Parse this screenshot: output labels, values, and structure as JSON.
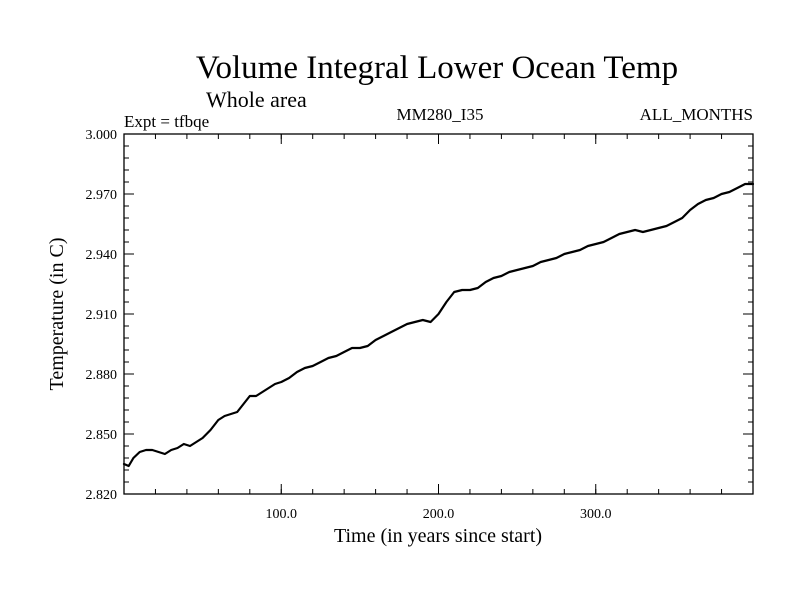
{
  "chart_data": {
    "type": "line",
    "title": "Volume Integral Lower Ocean Temp",
    "subtitle": "Whole area",
    "experiment_label": "Expt = tfbqe",
    "run_label": "MM280_I35",
    "period_label": "ALL_MONTHS",
    "xlabel": "Time (in years since start)",
    "ylabel": "Temperature (in C)",
    "xlim": [
      0,
      400
    ],
    "ylim": [
      2.82,
      3.0
    ],
    "x_ticks": [
      100,
      200,
      300
    ],
    "x_tick_labels": [
      "100.0",
      "200.0",
      "300.0"
    ],
    "y_ticks": [
      2.82,
      2.85,
      2.88,
      2.91,
      2.94,
      2.97,
      3.0
    ],
    "y_tick_labels": [
      "2.820",
      "2.850",
      "2.880",
      "2.910",
      "2.940",
      "2.970",
      "3.000"
    ],
    "grid": false,
    "series": [
      {
        "x": [
          0,
          3,
          6,
          10,
          14,
          18,
          22,
          26,
          30,
          34,
          38,
          42,
          46,
          50,
          55,
          60,
          64,
          68,
          72,
          76,
          80,
          84,
          88,
          92,
          96,
          100,
          105,
          110,
          115,
          120,
          125,
          130,
          135,
          140,
          145,
          150,
          155,
          160,
          165,
          170,
          175,
          180,
          185,
          190,
          195,
          200,
          205,
          210,
          215,
          220,
          225,
          230,
          235,
          240,
          245,
          250,
          255,
          260,
          265,
          270,
          275,
          280,
          285,
          290,
          295,
          300,
          305,
          310,
          315,
          320,
          325,
          330,
          335,
          340,
          345,
          350,
          355,
          360,
          365,
          370,
          375,
          380,
          385,
          390,
          395,
          400
        ],
        "values": [
          2.835,
          2.834,
          2.838,
          2.841,
          2.842,
          2.842,
          2.841,
          2.84,
          2.842,
          2.843,
          2.845,
          2.844,
          2.846,
          2.848,
          2.852,
          2.857,
          2.859,
          2.86,
          2.861,
          2.865,
          2.869,
          2.869,
          2.871,
          2.873,
          2.875,
          2.876,
          2.878,
          2.881,
          2.883,
          2.884,
          2.886,
          2.888,
          2.889,
          2.891,
          2.893,
          2.893,
          2.894,
          2.897,
          2.899,
          2.901,
          2.903,
          2.905,
          2.906,
          2.907,
          2.906,
          2.91,
          2.916,
          2.921,
          2.922,
          2.922,
          2.923,
          2.926,
          2.928,
          2.929,
          2.931,
          2.932,
          2.933,
          2.934,
          2.936,
          2.937,
          2.938,
          2.94,
          2.941,
          2.942,
          2.944,
          2.945,
          2.946,
          2.948,
          2.95,
          2.951,
          2.952,
          2.951,
          2.952,
          2.953,
          2.954,
          2.956,
          2.958,
          2.962,
          2.965,
          2.967,
          2.968,
          2.97,
          2.971,
          2.973,
          2.975,
          2.975
        ]
      }
    ]
  }
}
